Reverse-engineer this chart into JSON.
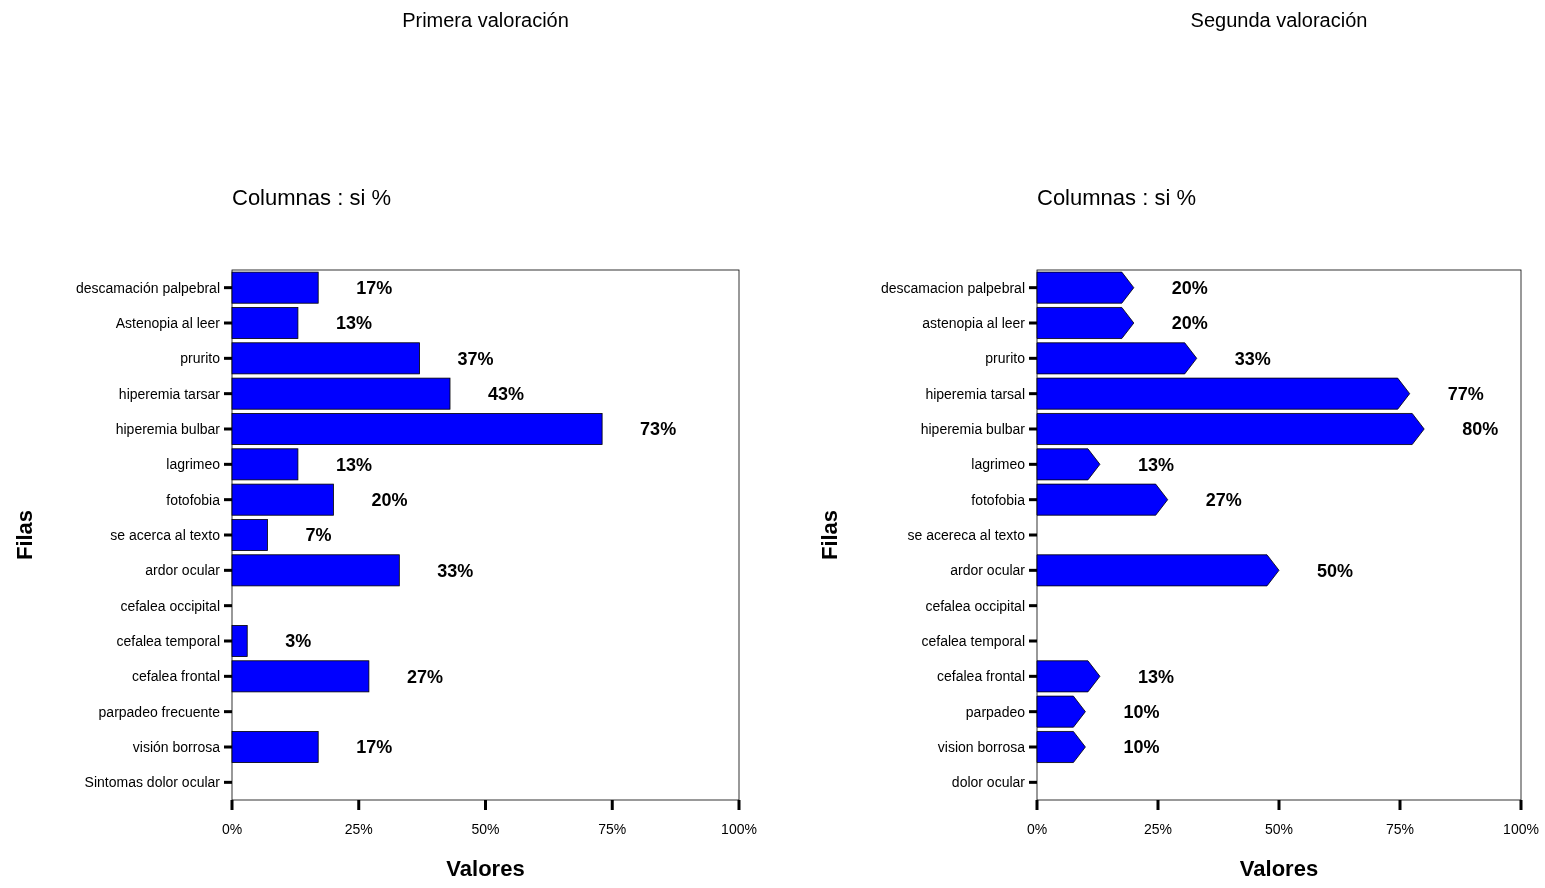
{
  "chart_data": [
    {
      "type": "bar",
      "orientation": "horizontal",
      "title": "Primera valoración",
      "subtitle": "Columnas : si %",
      "xlabel": "Valores",
      "ylabel": "Filas",
      "color": "#0000ff",
      "categories": [
        "descamación palpebral",
        "Astenopia al leer",
        "prurito",
        "hiperemia tarsar",
        "hiperemia bulbar",
        "lagrimeo",
        "fotofobia",
        "se acerca al texto",
        "ardor ocular",
        "cefalea occipital",
        "cefalea temporal",
        "cefalea frontal",
        "parpadeo frecuente",
        "visión borrosa",
        "Sintomas dolor ocular"
      ],
      "values": [
        17,
        13,
        37,
        43,
        73,
        13,
        20,
        7,
        33,
        0,
        3,
        27,
        0,
        17,
        0
      ],
      "value_labels": [
        "17%",
        "13%",
        "37%",
        "43%",
        "73%",
        "13%",
        "20%",
        "7%",
        "33%",
        null,
        "3%",
        "27%",
        null,
        "17%",
        null
      ],
      "xlim": [
        0,
        100
      ],
      "xticks": [
        {
          "value": 0,
          "label": "0%"
        },
        {
          "value": 25,
          "label": "25%"
        },
        {
          "value": 50,
          "label": "50%"
        },
        {
          "value": 75,
          "label": "75%"
        },
        {
          "value": 100,
          "label": "100%"
        }
      ]
    },
    {
      "type": "bar",
      "orientation": "horizontal",
      "title": "Segunda valoración",
      "subtitle": "Columnas : si %",
      "xlabel": "Valores",
      "ylabel": "Filas",
      "color": "#0000ff",
      "categories": [
        "descamacion palpebral",
        "astenopia al leer",
        "prurito",
        "hiperemia tarsal",
        "hiperemia bulbar",
        "lagrimeo",
        "fotofobia",
        "se acereca al texto",
        "ardor ocular",
        "cefalea occipital",
        "cefalea temporal",
        "cefalea frontal",
        "parpadeo",
        "vision borrosa",
        "dolor ocular"
      ],
      "values": [
        20,
        20,
        33,
        77,
        80,
        13,
        27,
        0,
        50,
        0,
        0,
        13,
        10,
        10,
        0
      ],
      "value_labels": [
        "20%",
        "20%",
        "33%",
        "77%",
        "80%",
        "13%",
        "27%",
        null,
        "50%",
        null,
        null,
        "13%",
        "10%",
        "10%",
        null
      ],
      "xlim": [
        0,
        100
      ],
      "xticks": [
        {
          "value": 0,
          "label": "0%"
        },
        {
          "value": 25,
          "label": "25%"
        },
        {
          "value": 50,
          "label": "50%"
        },
        {
          "value": 75,
          "label": "75%"
        },
        {
          "value": 100,
          "label": "100%"
        }
      ]
    }
  ]
}
